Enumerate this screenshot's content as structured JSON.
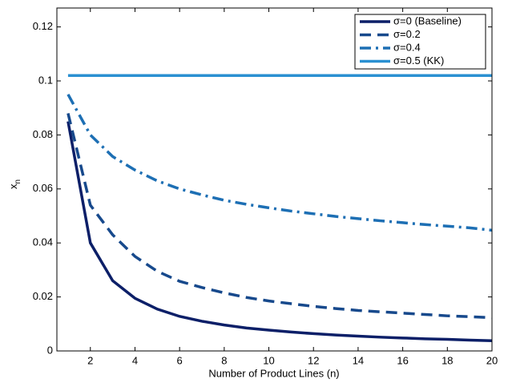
{
  "chart_data": {
    "type": "line",
    "xlabel": "Number of Product Lines (n)",
    "ylabel": {
      "base": "x",
      "sub": "n"
    },
    "x": [
      1,
      2,
      3,
      4,
      5,
      6,
      7,
      8,
      9,
      10,
      11,
      12,
      13,
      14,
      15,
      16,
      17,
      18,
      19,
      20
    ],
    "series": [
      {
        "name": "σ=0 (Baseline)",
        "color": "#0c1f68",
        "linestyle": "solid",
        "values": [
          0.085,
          0.04,
          0.026,
          0.0195,
          0.0155,
          0.0128,
          0.011,
          0.0096,
          0.0085,
          0.0077,
          0.007,
          0.0064,
          0.0059,
          0.0055,
          0.0051,
          0.0048,
          0.0045,
          0.0043,
          0.004,
          0.0038
        ]
      },
      {
        "name": "σ=0.2",
        "color": "#17498c",
        "linestyle": "dashed",
        "values": [
          0.088,
          0.054,
          0.043,
          0.035,
          0.0295,
          0.0258,
          0.0235,
          0.0215,
          0.0198,
          0.0185,
          0.0175,
          0.0165,
          0.0157,
          0.015,
          0.0145,
          0.014,
          0.0135,
          0.013,
          0.0127,
          0.0123
        ]
      },
      {
        "name": "σ=0.4",
        "color": "#1d6fb4",
        "linestyle": "dashdot",
        "values": [
          0.095,
          0.08,
          0.072,
          0.067,
          0.063,
          0.06,
          0.0578,
          0.0558,
          0.0543,
          0.053,
          0.0518,
          0.0508,
          0.0498,
          0.049,
          0.0482,
          0.0475,
          0.0468,
          0.0462,
          0.0456,
          0.0447
        ]
      },
      {
        "name": "σ=0.5 (KK)",
        "color": "#2a90d2",
        "linestyle": "solid",
        "values": [
          0.102,
          0.102,
          0.102,
          0.102,
          0.102,
          0.102,
          0.102,
          0.102,
          0.102,
          0.102,
          0.102,
          0.102,
          0.102,
          0.102,
          0.102,
          0.102,
          0.102,
          0.102,
          0.102,
          0.102
        ]
      }
    ],
    "xlim": [
      0.5,
      20
    ],
    "xticks": [
      2,
      4,
      6,
      8,
      10,
      12,
      14,
      16,
      18,
      20
    ],
    "ylim": [
      0,
      0.127
    ],
    "yticks": [
      0,
      0.02,
      0.04,
      0.06,
      0.08,
      0.1,
      0.12
    ],
    "legend": "upper right"
  }
}
